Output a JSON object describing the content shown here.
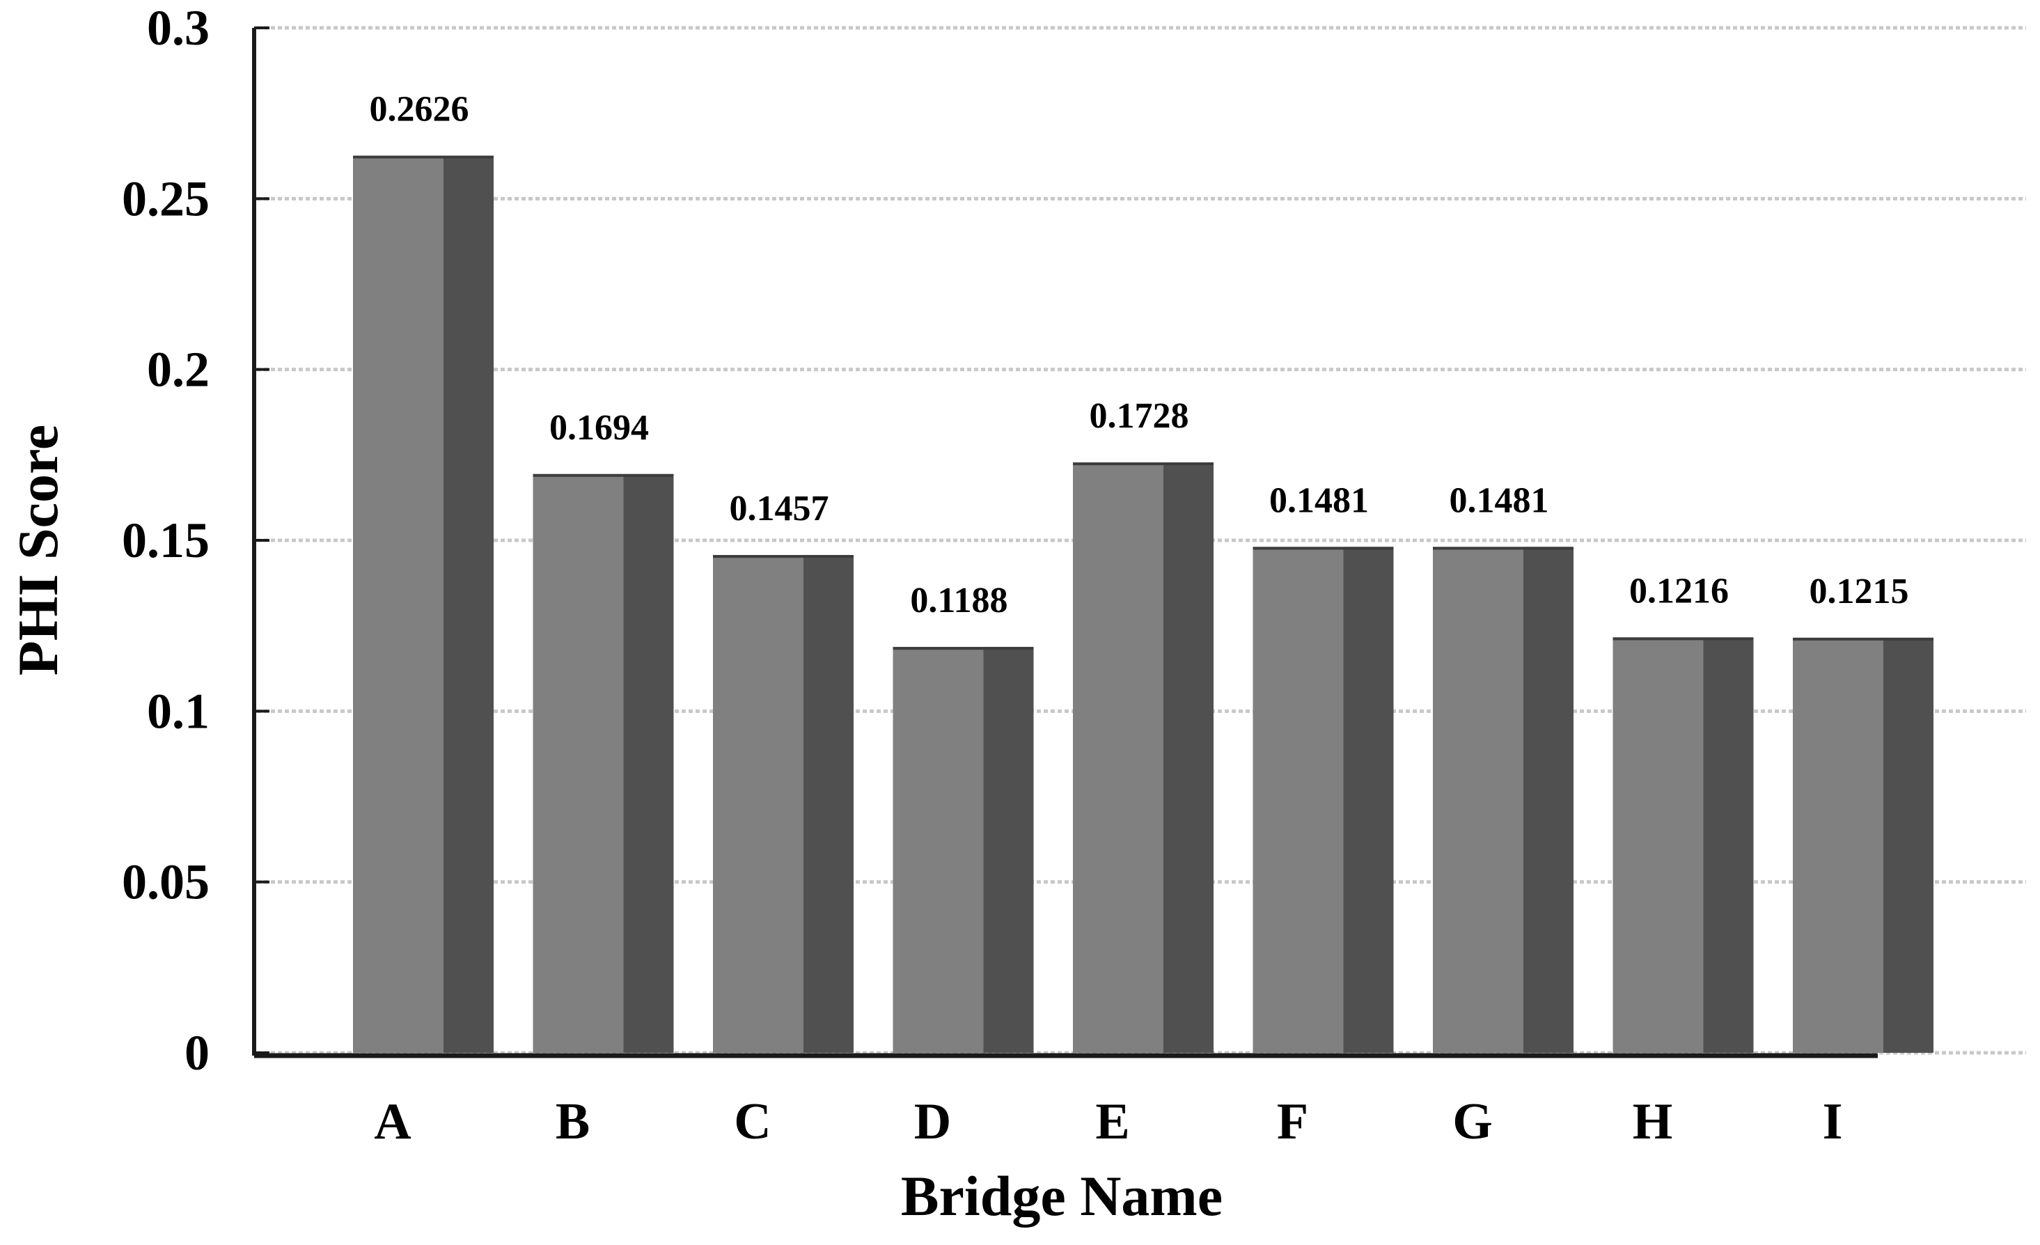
{
  "chart_data": {
    "type": "bar",
    "title": "",
    "xlabel": "Bridge Name",
    "ylabel": "PHI Score",
    "categories": [
      "A",
      "B",
      "C",
      "D",
      "E",
      "F",
      "G",
      "H",
      "I"
    ],
    "values": [
      0.2626,
      0.1694,
      0.1457,
      0.1188,
      0.1728,
      0.1481,
      0.1481,
      0.1216,
      0.1215
    ],
    "value_labels": [
      "0.2626",
      "0.1694",
      "0.1457",
      "0.1188",
      "0.1728",
      "0.1481",
      "0.1481",
      "0.1216",
      "0.1215"
    ],
    "ylim": [
      0,
      0.3
    ],
    "yticks": [
      0,
      0.05,
      0.1,
      0.15,
      0.2,
      0.25,
      0.3
    ],
    "ytick_labels": [
      "0",
      "0.05",
      "0.1",
      "0.15",
      "0.2",
      "0.25",
      "0.3"
    ],
    "grid": true,
    "legend": "none",
    "colors": {
      "bar_front": "#808080",
      "bar_side": "#505050",
      "grid": "#c8c8c8",
      "axis": "#1a1a1a"
    }
  }
}
